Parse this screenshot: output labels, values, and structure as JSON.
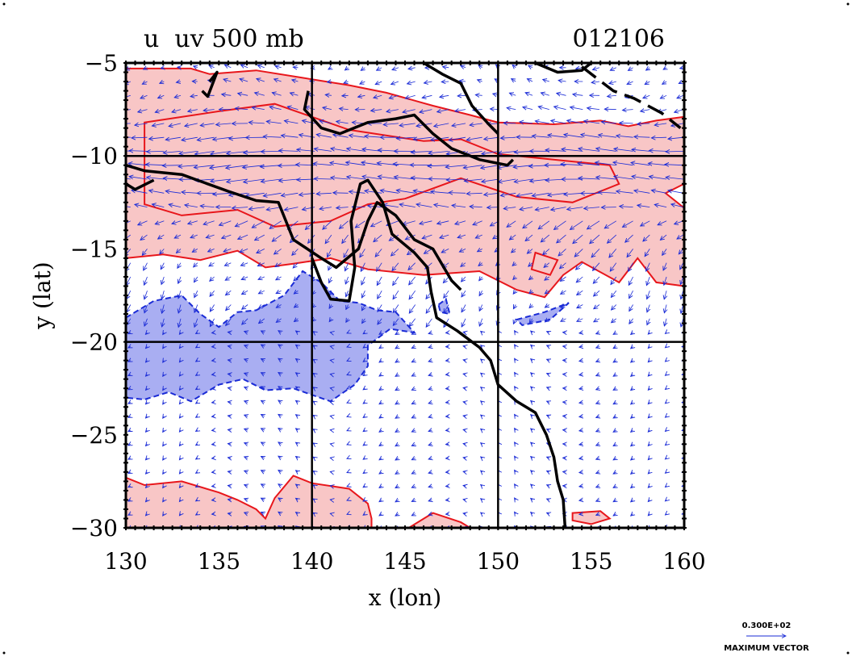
{
  "chart_data": {
    "type": "contour-vector-map",
    "title_left": "u  uv 500 mb",
    "title_right": "012106",
    "xlabel": "x (lon)",
    "ylabel": "y (lat)",
    "xlim": [
      130,
      160
    ],
    "ylim": [
      -30,
      -5
    ],
    "xticks": [
      130,
      135,
      140,
      145,
      150,
      155,
      160
    ],
    "yticks": [
      -5,
      -10,
      -15,
      -20,
      -25,
      -30
    ],
    "xtick_labels": [
      "130",
      "135",
      "140",
      "145",
      "150",
      "155",
      "160"
    ],
    "ytick_labels": [
      "−5",
      "−10",
      "−15",
      "−20",
      "−25",
      "−30"
    ],
    "grid_lines": {
      "lon": [
        140,
        150
      ],
      "lat": [
        -10,
        -20
      ]
    },
    "vector_legend": {
      "value_label": "0.300E+02",
      "caption": "MAXIMUM VECTOR"
    },
    "colors": {
      "positive_fill": "#f8c6c6",
      "positive_contour": "#e8161b",
      "negative_fill": "#a9aef2",
      "negative_contour": "#1a2bd6",
      "vectors": "#1a2bd6",
      "coastline": "#000000"
    },
    "regions": {
      "positive": [
        [
          [
            130,
            -5.3
          ],
          [
            133.5,
            -5.3
          ],
          [
            134.5,
            -5.6
          ],
          [
            137,
            -5.4
          ],
          [
            139.5,
            -5.8
          ],
          [
            142,
            -6.2
          ],
          [
            144,
            -6.6
          ],
          [
            146.5,
            -7.3
          ],
          [
            148.5,
            -7.8
          ],
          [
            150,
            -8.2
          ],
          [
            153,
            -8.3
          ],
          [
            155.5,
            -8.1
          ],
          [
            157,
            -8.4
          ],
          [
            158.5,
            -8.1
          ],
          [
            160,
            -7.9
          ],
          [
            160,
            -11.5
          ],
          [
            159,
            -12
          ],
          [
            160,
            -12.8
          ],
          [
            160,
            -17
          ],
          [
            158.5,
            -16.8
          ],
          [
            157.5,
            -15.5
          ],
          [
            156.5,
            -16.8
          ],
          [
            154.5,
            -15.7
          ],
          [
            153.5,
            -16.4
          ],
          [
            152.5,
            -17.6
          ],
          [
            151,
            -17.2
          ],
          [
            149,
            -16.2
          ],
          [
            146,
            -16.4
          ],
          [
            143,
            -16.1
          ],
          [
            141,
            -15.5
          ],
          [
            139,
            -15.8
          ],
          [
            137.5,
            -16
          ],
          [
            136,
            -15.1
          ],
          [
            134,
            -15.6
          ],
          [
            132,
            -15.3
          ],
          [
            130,
            -15.5
          ]
        ],
        [
          [
            130,
            -27.3
          ],
          [
            131,
            -27.7
          ],
          [
            133,
            -27.5
          ],
          [
            135,
            -28.1
          ],
          [
            136,
            -28.5
          ],
          [
            137,
            -29
          ],
          [
            137.5,
            -29.5
          ],
          [
            138,
            -28.4
          ],
          [
            139,
            -27.2
          ],
          [
            140,
            -27.6
          ],
          [
            142,
            -27.9
          ],
          [
            143,
            -28.7
          ],
          [
            143.2,
            -29.5
          ],
          [
            143.2,
            -30
          ],
          [
            130,
            -30
          ]
        ],
        [
          [
            145.2,
            -30
          ],
          [
            146.5,
            -29.2
          ],
          [
            148,
            -29.7
          ],
          [
            148.5,
            -30
          ]
        ],
        [
          [
            154,
            -29.2
          ],
          [
            155.5,
            -29.1
          ],
          [
            156,
            -29.5
          ],
          [
            155,
            -29.8
          ],
          [
            154,
            -29.6
          ]
        ]
      ],
      "negative": [
        [
          [
            130,
            -18.7
          ],
          [
            131.5,
            -17.8
          ],
          [
            133,
            -17.5
          ],
          [
            134,
            -18.5
          ],
          [
            135,
            -19.2
          ],
          [
            136,
            -18.4
          ],
          [
            137,
            -18.3
          ],
          [
            138.5,
            -17.5
          ],
          [
            139.5,
            -16.2
          ],
          [
            140.5,
            -16.8
          ],
          [
            141.5,
            -17.8
          ],
          [
            142.5,
            -17.9
          ],
          [
            143.5,
            -18.3
          ],
          [
            144.5,
            -18.4
          ],
          [
            145.5,
            -19.5
          ],
          [
            144.2,
            -19.3
          ],
          [
            143,
            -20.2
          ],
          [
            143,
            -21.3
          ],
          [
            142.3,
            -22.3
          ],
          [
            141,
            -23.2
          ],
          [
            139,
            -22.5
          ],
          [
            137.5,
            -22.6
          ],
          [
            136.3,
            -22
          ],
          [
            135,
            -22.3
          ],
          [
            133.5,
            -23.2
          ],
          [
            132.3,
            -22.7
          ],
          [
            131,
            -23.1
          ],
          [
            130,
            -23
          ]
        ],
        [
          [
            146.8,
            -18
          ],
          [
            147.2,
            -17.7
          ],
          [
            147.4,
            -18.5
          ],
          [
            146.9,
            -18.4
          ]
        ],
        [
          [
            151,
            -18.8
          ],
          [
            152.5,
            -18.4
          ],
          [
            153.8,
            -17.9
          ],
          [
            152.8,
            -18.8
          ],
          [
            151.3,
            -19.1
          ]
        ]
      ],
      "positive_inner": [
        [
          [
            131,
            -8.2
          ],
          [
            135,
            -7.6
          ],
          [
            138,
            -7.2
          ],
          [
            142,
            -8.6
          ],
          [
            146,
            -9.2
          ],
          [
            148,
            -9.1
          ],
          [
            150,
            -9.9
          ],
          [
            154,
            -10.3
          ],
          [
            156,
            -10.5
          ],
          [
            156.5,
            -11.5
          ],
          [
            154,
            -12.5
          ],
          [
            151,
            -12.2
          ],
          [
            148,
            -11.2
          ],
          [
            145,
            -12.3
          ],
          [
            143,
            -12.6
          ],
          [
            141,
            -13.5
          ],
          [
            138,
            -13.8
          ],
          [
            136,
            -12.9
          ],
          [
            133,
            -13.2
          ],
          [
            131,
            -12.6
          ]
        ],
        [
          [
            152,
            -15.2
          ],
          [
            153.2,
            -15.6
          ],
          [
            152.8,
            -16.4
          ],
          [
            151.8,
            -16.1
          ]
        ]
      ]
    },
    "coastline": {
      "new_guinea": [
        [
          130,
          -10.5
        ],
        [
          131,
          -10.8
        ],
        [
          133,
          -11
        ],
        [
          135.5,
          -11.9
        ],
        [
          137,
          -12.4
        ],
        [
          138.2,
          -12.5
        ],
        [
          139,
          -14.5
        ],
        [
          140.5,
          -15.5
        ],
        [
          141.3,
          -16
        ],
        [
          142.5,
          -15
        ],
        [
          143,
          -13.5
        ],
        [
          143.5,
          -12.5
        ],
        [
          144.5,
          -13.2
        ],
        [
          145.5,
          -14.5
        ],
        [
          146.5,
          -15
        ],
        [
          147.5,
          -16.7
        ],
        [
          148,
          -17.2
        ]
      ],
      "cape_york": [
        [
          140,
          -15.5
        ],
        [
          140.5,
          -16.8
        ],
        [
          141,
          -17.7
        ],
        [
          142,
          -17.8
        ],
        [
          142.3,
          -16
        ],
        [
          142.1,
          -13.5
        ],
        [
          142.6,
          -11.5
        ],
        [
          143,
          -11.3
        ],
        [
          143.8,
          -12.5
        ],
        [
          144.3,
          -14.2
        ],
        [
          145.5,
          -15.2
        ],
        [
          146.2,
          -16
        ],
        [
          146.4,
          -17.3
        ],
        [
          146.7,
          -18.7
        ],
        [
          147.8,
          -19.4
        ],
        [
          149,
          -20.3
        ],
        [
          149.6,
          -21
        ],
        [
          150,
          -22.3
        ],
        [
          151,
          -23.2
        ],
        [
          152,
          -23.8
        ],
        [
          152.6,
          -25
        ],
        [
          153,
          -26.2
        ],
        [
          153.2,
          -27.5
        ],
        [
          153.5,
          -28.5
        ],
        [
          153.6,
          -30
        ]
      ],
      "gulf_north": [
        [
          139.8,
          -6.5
        ],
        [
          139.6,
          -7.5
        ],
        [
          140.5,
          -8.5
        ],
        [
          141.5,
          -8.8
        ],
        [
          143,
          -8.2
        ],
        [
          144.5,
          -8
        ],
        [
          145.5,
          -7.8
        ],
        [
          146.5,
          -8.8
        ],
        [
          147.5,
          -9.6
        ],
        [
          149,
          -10.2
        ],
        [
          150.5,
          -10.5
        ],
        [
          150.8,
          -10.2
        ]
      ],
      "north_top": [
        [
          146,
          -5
        ],
        [
          147,
          -5.6
        ],
        [
          148,
          -6.1
        ],
        [
          148.6,
          -7.3
        ],
        [
          149.5,
          -8.3
        ],
        [
          150,
          -8.8
        ]
      ],
      "islands": [
        [
          [
            152,
            -5
          ],
          [
            153.2,
            -5.5
          ],
          [
            154.5,
            -5.4
          ],
          [
            155,
            -5
          ]
        ],
        [
          [
            154.5,
            -5.2
          ],
          [
            155.4,
            -5.9
          ],
          [
            156.2,
            -6.5
          ],
          [
            157.3,
            -6.9
          ],
          [
            158.8,
            -7.7
          ],
          [
            159.8,
            -8.5
          ]
        ],
        [
          [
            134.5,
            -6
          ],
          [
            134.9,
            -5.5
          ],
          [
            134.4,
            -6.8
          ],
          [
            134.1,
            -6.5
          ]
        ],
        [
          [
            130,
            -11.5
          ],
          [
            130.5,
            -11.8
          ],
          [
            131.5,
            -11.3
          ]
        ]
      ]
    }
  }
}
